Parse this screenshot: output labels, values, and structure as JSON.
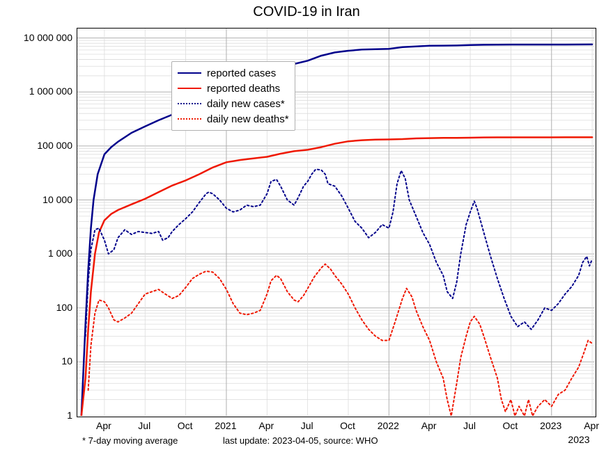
{
  "chart": {
    "type": "line",
    "title": "COVID-19 in Iran",
    "title_fontsize": 20,
    "background_color": "#ffffff",
    "plot_border_color": "#000000",
    "grid_major_color": "#b0b0b0",
    "grid_minor_color": "#dcdcdc",
    "yscale": "log",
    "ylim": [
      1,
      15000000
    ],
    "ytick_values": [
      1,
      10,
      100,
      1000,
      10000,
      100000,
      1000000,
      10000000
    ],
    "ytick_labels": [
      "1",
      "10",
      "100",
      "1 000",
      "10 000",
      "100 000",
      "1 000 000",
      "10 000 000"
    ],
    "x_range_months": [
      "2020-02",
      "2023-04"
    ],
    "xtick_major_positions": [
      11,
      23,
      35
    ],
    "xtick_major_labels": [
      "2021",
      "2022",
      "2023"
    ],
    "xtick_minor_positions": [
      2,
      5,
      8,
      14,
      17,
      20,
      26,
      29,
      32,
      38
    ],
    "xtick_minor_labels": [
      "Apr",
      "Jul",
      "Oct",
      "Apr",
      "Jul",
      "Oct",
      "Apr",
      "Jul",
      "Oct",
      "Apr"
    ],
    "x_decade_label": "2023",
    "x_total_months": 38.2,
    "footnote_left": "* 7-day moving average",
    "footnote_center": "last update: 2023-04-05, source: WHO",
    "legend": {
      "items": [
        {
          "label": "reported cases",
          "color": "#00008b",
          "dash": "solid",
          "width": 2.5
        },
        {
          "label": "reported deaths",
          "color": "#ef1801",
          "dash": "solid",
          "width": 2.5
        },
        {
          "label": "daily new cases*",
          "color": "#00008b",
          "dash": "dotted",
          "width": 2.0
        },
        {
          "label": "daily new deaths*",
          "color": "#ef1801",
          "dash": "dotted",
          "width": 2.0
        }
      ]
    },
    "series": {
      "reported_cases": {
        "color": "#00008b",
        "dash": "solid",
        "width": 2.5,
        "points": [
          [
            0.3,
            1
          ],
          [
            0.6,
            50
          ],
          [
            0.8,
            500
          ],
          [
            1.0,
            3000
          ],
          [
            1.2,
            10000
          ],
          [
            1.5,
            30000
          ],
          [
            2.0,
            70000
          ],
          [
            2.5,
            95000
          ],
          [
            3.0,
            120000
          ],
          [
            4.0,
            175000
          ],
          [
            5.0,
            230000
          ],
          [
            6.0,
            300000
          ],
          [
            7.0,
            380000
          ],
          [
            8.0,
            480000
          ],
          [
            9.0,
            650000
          ],
          [
            10.0,
            900000
          ],
          [
            11.0,
            1200000
          ],
          [
            12.0,
            1450000
          ],
          [
            13.0,
            1700000
          ],
          [
            14.0,
            2200000
          ],
          [
            15.0,
            2800000
          ],
          [
            16.0,
            3300000
          ],
          [
            17.0,
            3800000
          ],
          [
            18.0,
            4700000
          ],
          [
            19.0,
            5400000
          ],
          [
            20.0,
            5800000
          ],
          [
            21.0,
            6100000
          ],
          [
            22.0,
            6200000
          ],
          [
            23.0,
            6300000
          ],
          [
            24.0,
            6800000
          ],
          [
            25.0,
            7000000
          ],
          [
            26.0,
            7200000
          ],
          [
            27.0,
            7230000
          ],
          [
            28.0,
            7280000
          ],
          [
            29.0,
            7400000
          ],
          [
            30.0,
            7500000
          ],
          [
            31.0,
            7540000
          ],
          [
            32.0,
            7555000
          ],
          [
            33.0,
            7560000
          ],
          [
            34.0,
            7562000
          ],
          [
            35.0,
            7564000
          ],
          [
            36.0,
            7570000
          ],
          [
            37.0,
            7580000
          ],
          [
            38.0,
            7600000
          ]
        ]
      },
      "reported_deaths": {
        "color": "#ef1801",
        "dash": "solid",
        "width": 2.5,
        "points": [
          [
            0.3,
            1
          ],
          [
            0.6,
            5
          ],
          [
            0.8,
            40
          ],
          [
            1.0,
            200
          ],
          [
            1.3,
            1000
          ],
          [
            1.6,
            2500
          ],
          [
            2.0,
            4200
          ],
          [
            2.5,
            5500
          ],
          [
            3.0,
            6500
          ],
          [
            4.0,
            8300
          ],
          [
            5.0,
            10500
          ],
          [
            6.0,
            14000
          ],
          [
            7.0,
            18500
          ],
          [
            8.0,
            23000
          ],
          [
            9.0,
            30000
          ],
          [
            10.0,
            40000
          ],
          [
            11.0,
            50000
          ],
          [
            12.0,
            55000
          ],
          [
            13.0,
            59000
          ],
          [
            14.0,
            63000
          ],
          [
            15.0,
            72000
          ],
          [
            16.0,
            80000
          ],
          [
            17.0,
            85000
          ],
          [
            18.0,
            95000
          ],
          [
            19.0,
            110000
          ],
          [
            20.0,
            122000
          ],
          [
            21.0,
            128000
          ],
          [
            22.0,
            131000
          ],
          [
            23.0,
            132000
          ],
          [
            24.0,
            134000
          ],
          [
            25.0,
            138000
          ],
          [
            26.0,
            140000
          ],
          [
            27.0,
            141000
          ],
          [
            28.0,
            141500
          ],
          [
            29.0,
            142500
          ],
          [
            30.0,
            144000
          ],
          [
            31.0,
            144300
          ],
          [
            32.0,
            144500
          ],
          [
            33.0,
            144600
          ],
          [
            34.0,
            144650
          ],
          [
            35.0,
            144700
          ],
          [
            36.0,
            144750
          ],
          [
            37.0,
            144850
          ],
          [
            38.0,
            145000
          ]
        ]
      },
      "daily_new_cases": {
        "color": "#00008b",
        "dash": "dotted",
        "width": 2.0,
        "points": [
          [
            0.6,
            30
          ],
          [
            0.8,
            300
          ],
          [
            1.0,
            1200
          ],
          [
            1.3,
            2800
          ],
          [
            1.6,
            3000
          ],
          [
            2.0,
            1800
          ],
          [
            2.3,
            1000
          ],
          [
            2.7,
            1200
          ],
          [
            3.0,
            2000
          ],
          [
            3.5,
            2800
          ],
          [
            4.0,
            2300
          ],
          [
            4.5,
            2600
          ],
          [
            5.0,
            2500
          ],
          [
            5.5,
            2400
          ],
          [
            6.0,
            2600
          ],
          [
            6.3,
            1800
          ],
          [
            6.7,
            2000
          ],
          [
            7.0,
            2600
          ],
          [
            7.5,
            3500
          ],
          [
            8.0,
            4500
          ],
          [
            8.5,
            6000
          ],
          [
            9.0,
            9000
          ],
          [
            9.5,
            13000
          ],
          [
            9.7,
            14000
          ],
          [
            10.0,
            13000
          ],
          [
            10.5,
            10000
          ],
          [
            11.0,
            7000
          ],
          [
            11.5,
            6000
          ],
          [
            12.0,
            6500
          ],
          [
            12.5,
            8000
          ],
          [
            13.0,
            7500
          ],
          [
            13.5,
            8000
          ],
          [
            14.0,
            13000
          ],
          [
            14.3,
            22000
          ],
          [
            14.7,
            24000
          ],
          [
            15.0,
            18000
          ],
          [
            15.5,
            10000
          ],
          [
            16.0,
            8000
          ],
          [
            16.3,
            11000
          ],
          [
            16.7,
            18000
          ],
          [
            17.0,
            22000
          ],
          [
            17.3,
            30000
          ],
          [
            17.6,
            37000
          ],
          [
            18.0,
            36000
          ],
          [
            18.3,
            30000
          ],
          [
            18.5,
            20000
          ],
          [
            19.0,
            18000
          ],
          [
            19.5,
            12000
          ],
          [
            20.0,
            7000
          ],
          [
            20.5,
            4000
          ],
          [
            21.0,
            3000
          ],
          [
            21.5,
            2000
          ],
          [
            22.0,
            2500
          ],
          [
            22.5,
            3500
          ],
          [
            23.0,
            3000
          ],
          [
            23.3,
            6000
          ],
          [
            23.6,
            20000
          ],
          [
            23.9,
            35000
          ],
          [
            24.2,
            25000
          ],
          [
            24.5,
            10000
          ],
          [
            25.0,
            5000
          ],
          [
            25.5,
            2500
          ],
          [
            26.0,
            1500
          ],
          [
            26.5,
            700
          ],
          [
            27.0,
            400
          ],
          [
            27.3,
            200
          ],
          [
            27.7,
            150
          ],
          [
            28.0,
            300
          ],
          [
            28.3,
            1000
          ],
          [
            28.7,
            3500
          ],
          [
            29.0,
            6000
          ],
          [
            29.3,
            9500
          ],
          [
            29.5,
            7000
          ],
          [
            30.0,
            2500
          ],
          [
            30.5,
            900
          ],
          [
            31.0,
            350
          ],
          [
            31.5,
            150
          ],
          [
            32.0,
            70
          ],
          [
            32.5,
            45
          ],
          [
            33.0,
            55
          ],
          [
            33.5,
            40
          ],
          [
            34.0,
            60
          ],
          [
            34.5,
            100
          ],
          [
            35.0,
            90
          ],
          [
            35.5,
            120
          ],
          [
            36.0,
            180
          ],
          [
            36.5,
            250
          ],
          [
            37.0,
            400
          ],
          [
            37.3,
            700
          ],
          [
            37.6,
            900
          ],
          [
            37.8,
            600
          ],
          [
            38.0,
            800
          ]
        ]
      },
      "daily_new_deaths": {
        "color": "#ef1801",
        "dash": "dotted",
        "width": 2.0,
        "points": [
          [
            0.8,
            3
          ],
          [
            1.0,
            20
          ],
          [
            1.3,
            80
          ],
          [
            1.6,
            140
          ],
          [
            2.0,
            130
          ],
          [
            2.3,
            100
          ],
          [
            2.7,
            60
          ],
          [
            3.0,
            55
          ],
          [
            3.5,
            65
          ],
          [
            4.0,
            80
          ],
          [
            4.5,
            120
          ],
          [
            5.0,
            180
          ],
          [
            5.5,
            200
          ],
          [
            6.0,
            220
          ],
          [
            6.5,
            180
          ],
          [
            7.0,
            150
          ],
          [
            7.5,
            170
          ],
          [
            8.0,
            240
          ],
          [
            8.5,
            350
          ],
          [
            9.0,
            420
          ],
          [
            9.5,
            480
          ],
          [
            10.0,
            460
          ],
          [
            10.5,
            350
          ],
          [
            11.0,
            220
          ],
          [
            11.5,
            120
          ],
          [
            12.0,
            80
          ],
          [
            12.5,
            75
          ],
          [
            13.0,
            80
          ],
          [
            13.5,
            90
          ],
          [
            14.0,
            180
          ],
          [
            14.3,
            320
          ],
          [
            14.7,
            400
          ],
          [
            15.0,
            350
          ],
          [
            15.5,
            200
          ],
          [
            16.0,
            140
          ],
          [
            16.3,
            130
          ],
          [
            16.7,
            170
          ],
          [
            17.0,
            230
          ],
          [
            17.5,
            380
          ],
          [
            18.0,
            550
          ],
          [
            18.3,
            650
          ],
          [
            18.7,
            520
          ],
          [
            19.0,
            400
          ],
          [
            19.5,
            280
          ],
          [
            20.0,
            180
          ],
          [
            20.5,
            100
          ],
          [
            21.0,
            60
          ],
          [
            21.5,
            40
          ],
          [
            22.0,
            30
          ],
          [
            22.5,
            25
          ],
          [
            23.0,
            25
          ],
          [
            23.5,
            60
          ],
          [
            24.0,
            150
          ],
          [
            24.3,
            230
          ],
          [
            24.7,
            160
          ],
          [
            25.0,
            90
          ],
          [
            25.5,
            45
          ],
          [
            26.0,
            25
          ],
          [
            26.5,
            10
          ],
          [
            27.0,
            5
          ],
          [
            27.3,
            2
          ],
          [
            27.6,
            1
          ],
          [
            28.0,
            4
          ],
          [
            28.3,
            12
          ],
          [
            28.7,
            30
          ],
          [
            29.0,
            55
          ],
          [
            29.3,
            70
          ],
          [
            29.7,
            50
          ],
          [
            30.0,
            30
          ],
          [
            30.5,
            12
          ],
          [
            31.0,
            5
          ],
          [
            31.3,
            2
          ],
          [
            31.6,
            1.2
          ],
          [
            32.0,
            2
          ],
          [
            32.3,
            1
          ],
          [
            32.6,
            1.5
          ],
          [
            33.0,
            1
          ],
          [
            33.3,
            2
          ],
          [
            33.6,
            1
          ],
          [
            34.0,
            1.5
          ],
          [
            34.5,
            2
          ],
          [
            35.0,
            1.5
          ],
          [
            35.5,
            2.5
          ],
          [
            36.0,
            3
          ],
          [
            36.5,
            5
          ],
          [
            37.0,
            8
          ],
          [
            37.4,
            15
          ],
          [
            37.7,
            25
          ],
          [
            38.0,
            22
          ]
        ]
      }
    }
  }
}
